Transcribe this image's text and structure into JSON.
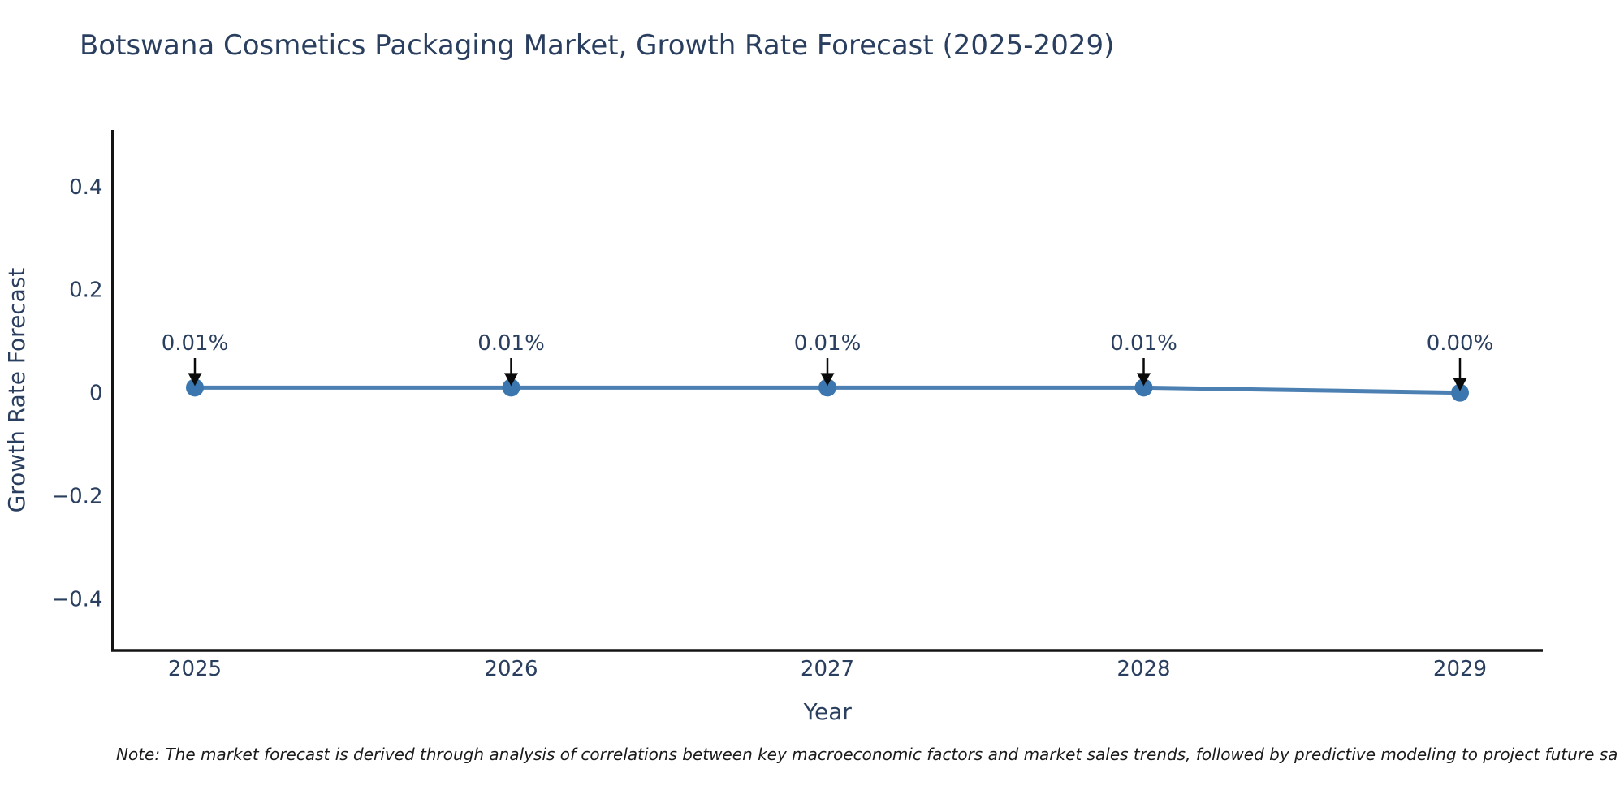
{
  "page": {
    "note": "Note: The market forecast is derived through analysis of correlations between key macroeconomic factors and market sales trends, followed by predictive modeling to project future sa"
  },
  "colors": {
    "background": "#ffffff",
    "text": "#2a3f5f",
    "note_text": "#1a1a1a",
    "axis_line": "#141414",
    "line": "#4c80b3",
    "marker": "#3b76af",
    "arrow": "#0a0a0a"
  },
  "chart_data": {
    "type": "line",
    "title": "Botswana Cosmetics Packaging Market, Growth Rate Forecast (2025-2029)",
    "xlabel": "Year",
    "ylabel": "Growth Rate Forecast",
    "x": [
      2025,
      2026,
      2027,
      2028,
      2029
    ],
    "xtick_labels": [
      "2025",
      "2026",
      "2027",
      "2028",
      "2029"
    ],
    "series": [
      {
        "name": "Growth Rate Forecast",
        "values": [
          0.01,
          0.01,
          0.01,
          0.01,
          0.0
        ]
      }
    ],
    "point_labels": [
      "0.01%",
      "0.01%",
      "0.01%",
      "0.01%",
      "0.00%"
    ],
    "ylim": [
      -0.5,
      0.51
    ],
    "yticks": [
      0.4,
      0.2,
      0,
      -0.2,
      -0.4
    ],
    "ytick_labels": [
      "0.4",
      "0.2",
      "0",
      "−0.2",
      "−0.4"
    ],
    "grid": false,
    "legend": "none",
    "annotation_style": "arrow-down"
  }
}
